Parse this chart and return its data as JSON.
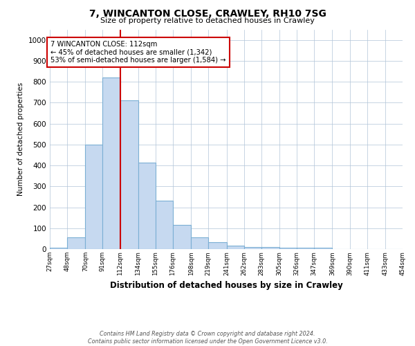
{
  "title1": "7, WINCANTON CLOSE, CRAWLEY, RH10 7SG",
  "title2": "Size of property relative to detached houses in Crawley",
  "xlabel": "Distribution of detached houses by size in Crawley",
  "ylabel": "Number of detached properties",
  "bin_edges": [
    27,
    48,
    70,
    91,
    112,
    134,
    155,
    176,
    198,
    219,
    241,
    262,
    283,
    305,
    326,
    347,
    369,
    390,
    411,
    433,
    454
  ],
  "bar_heights": [
    8,
    57,
    500,
    820,
    710,
    415,
    230,
    115,
    55,
    32,
    15,
    10,
    10,
    7,
    5,
    8,
    0,
    0,
    0,
    0
  ],
  "bar_color": "#c6d9f0",
  "bar_edge_color": "#7bafd4",
  "vline_x": 112,
  "vline_color": "#cc0000",
  "annotation_line1": "7 WINCANTON CLOSE: 112sqm",
  "annotation_line2": "← 45% of detached houses are smaller (1,342)",
  "annotation_line3": "53% of semi-detached houses are larger (1,584) →",
  "annotation_box_color": "#cc0000",
  "ylim": [
    0,
    1050
  ],
  "yticks": [
    0,
    100,
    200,
    300,
    400,
    500,
    600,
    700,
    800,
    900,
    1000
  ],
  "footer": "Contains HM Land Registry data © Crown copyright and database right 2024.\nContains public sector information licensed under the Open Government Licence v3.0.",
  "background_color": "#ffffff",
  "grid_color": "#b0c4d8"
}
